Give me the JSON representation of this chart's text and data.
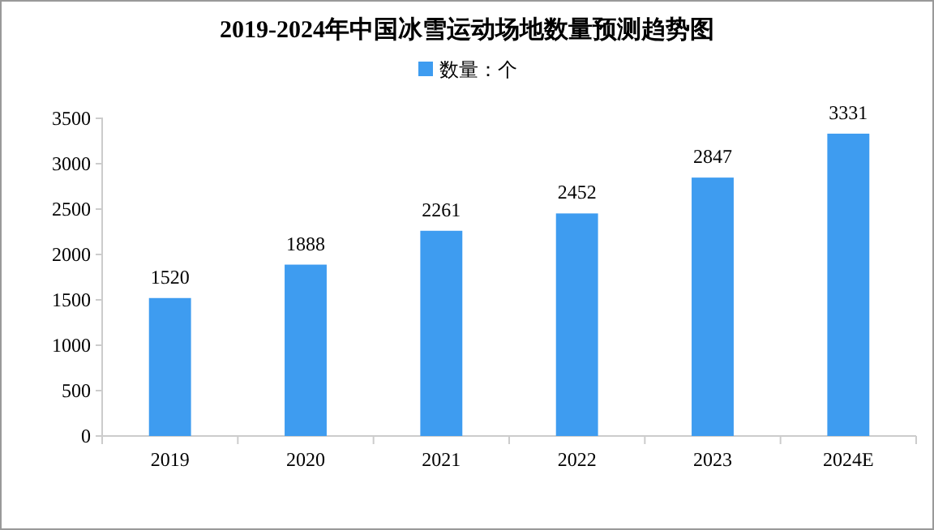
{
  "chart_data": {
    "type": "bar",
    "title": "2019-2024年中国冰雪运动场地数量预测趋势图",
    "categories": [
      "2019",
      "2020",
      "2021",
      "2022",
      "2023",
      "2024E"
    ],
    "series": [
      {
        "name": "数量：个",
        "color": "#3e9cf0",
        "values": [
          1520,
          1888,
          2261,
          2452,
          2847,
          3331
        ]
      }
    ],
    "ylim": [
      0,
      3500
    ],
    "yticks": [
      0,
      500,
      1000,
      1500,
      2000,
      2500,
      3000,
      3500
    ],
    "data_labels": true,
    "legend": "top"
  }
}
